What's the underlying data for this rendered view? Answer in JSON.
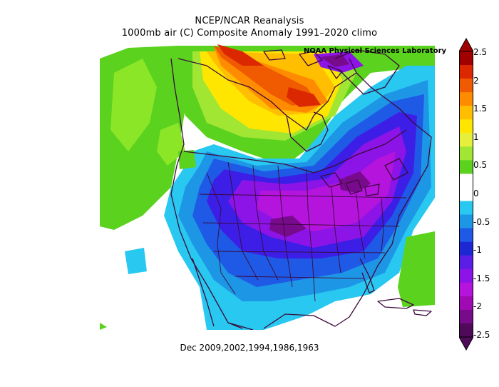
{
  "title": {
    "line1": "NCEP/NCAR Reanalysis",
    "line2": "1000mb air (C) Composite Anomaly 1991–2020 climo"
  },
  "credit": "NOAA Physical Sciences Laboratory",
  "subtitle": "Dec 2009,2002,1994,1986,1963",
  "colorbar": {
    "ticks": [
      "2.5",
      "2",
      "1.5",
      "1",
      "0.5",
      "0",
      "-0.5",
      "-1",
      "-1.5",
      "-2",
      "-2.5"
    ],
    "colors": [
      "#a00000",
      "#dc2800",
      "#f05a00",
      "#ff8c00",
      "#ffbe00",
      "#ffe600",
      "#e6f03c",
      "#a0e632",
      "#5ad21e",
      "#ffffff",
      "#ffffff",
      "#28c8f0",
      "#1e96e6",
      "#1e5ae6",
      "#1e28d2",
      "#5a1ee6",
      "#8c14e6",
      "#b414dc",
      "#a00ab4",
      "#780a8c",
      "#500a5a"
    ]
  },
  "map": {
    "region": "North America",
    "colors": {
      "pos_low": "#8ce628",
      "pos_high": "#5ad21e",
      "yellow": "#ffe600",
      "orange": "#ff8c00",
      "red": "#dc2800",
      "neg_cyan": "#28c8f0",
      "neg_blue": "#1e96e6",
      "neg_darkblue": "#1e5ae6",
      "neg_indigo": "#3c1ee6",
      "neg_violet": "#8c14e6",
      "neg_magenta": "#b414dc",
      "neg_deep": "#780a8c",
      "boundary": "#3c0a3c"
    }
  }
}
